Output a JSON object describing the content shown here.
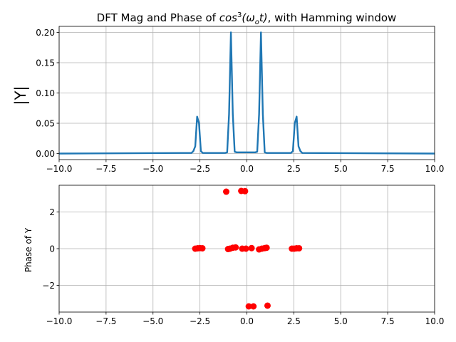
{
  "chart_data": [
    {
      "type": "line",
      "title_parts": [
        "DFT Mag and Phase of ",
        "cos",
        "3",
        "(ω",
        "o",
        "t)",
        ", with Hamming window"
      ],
      "xlabel": "",
      "ylabel": "|Y|",
      "xlim": [
        -10,
        10
      ],
      "ylim": [
        -0.01,
        0.21
      ],
      "xticks": [
        -10,
        -7.5,
        -5,
        -2.5,
        0,
        2.5,
        5,
        7.5,
        10
      ],
      "xtick_labels": [
        "−10.0",
        "−7.5",
        "−5.0",
        "−2.5",
        "0.0",
        "2.5",
        "5.0",
        "7.5",
        "10.0"
      ],
      "yticks": [
        0,
        0.05,
        0.1,
        0.15,
        0.2
      ],
      "ytick_labels": [
        "0.00",
        "0.05",
        "0.10",
        "0.15",
        "0.20"
      ],
      "grid": true,
      "color": "#1f77b4",
      "series": [
        {
          "x": [
            -10,
            -2.95,
            -2.85,
            -2.75,
            -2.65,
            -2.55,
            -2.45,
            -2.35,
            -2.25,
            -1.15,
            -1.05,
            -0.95,
            -0.85,
            -0.75,
            -0.65,
            -0.55,
            -0.45,
            0.35,
            0.45,
            0.55,
            0.65,
            0.75,
            0.85,
            0.95,
            1.05,
            2.35,
            2.45,
            2.55,
            2.65,
            2.75,
            2.85,
            2.95,
            10
          ],
          "y": [
            0,
            0.001,
            0.004,
            0.012,
            0.061,
            0.05,
            0.004,
            0.001,
            0.001,
            0.001,
            0.002,
            0.065,
            0.2,
            0.065,
            0.003,
            0.002,
            0.002,
            0.002,
            0.002,
            0.003,
            0.065,
            0.2,
            0.065,
            0.002,
            0.001,
            0.001,
            0.004,
            0.05,
            0.061,
            0.012,
            0.004,
            0.001,
            0
          ]
        }
      ]
    },
    {
      "type": "scatter",
      "xlabel": "",
      "ylabel": "Phase of Y",
      "xlim": [
        -10,
        10
      ],
      "ylim": [
        -3.45,
        3.45
      ],
      "xticks": [
        -10,
        -7.5,
        -5,
        -2.5,
        0,
        2.5,
        5,
        7.5,
        10
      ],
      "xtick_labels": [
        "−10.0",
        "−7.5",
        "−5.0",
        "−2.5",
        "0.0",
        "2.5",
        "5.0",
        "7.5",
        "10.0"
      ],
      "yticks": [
        -2,
        0,
        2
      ],
      "ytick_labels": [
        "−2",
        "0",
        "2"
      ],
      "grid": true,
      "color": "#ff0000",
      "series": [
        {
          "x": [
            -2.75,
            -2.62,
            -2.5,
            -2.37,
            -1.1,
            -0.3,
            -0.1,
            -1.0,
            -0.9,
            -0.75,
            -0.6,
            -0.25,
            -0.05,
            0.25,
            0.65,
            0.8,
            0.95,
            1.05,
            2.4,
            2.52,
            2.65,
            2.78,
            0.1,
            0.35,
            1.1
          ],
          "y": [
            0.0,
            0.02,
            0.03,
            0.02,
            3.1,
            3.14,
            3.13,
            -0.02,
            0.0,
            0.05,
            0.07,
            0.0,
            0.0,
            0.03,
            -0.04,
            0.0,
            0.03,
            0.05,
            0.0,
            0.0,
            0.02,
            0.02,
            -3.14,
            -3.14,
            -3.1
          ]
        }
      ]
    }
  ]
}
